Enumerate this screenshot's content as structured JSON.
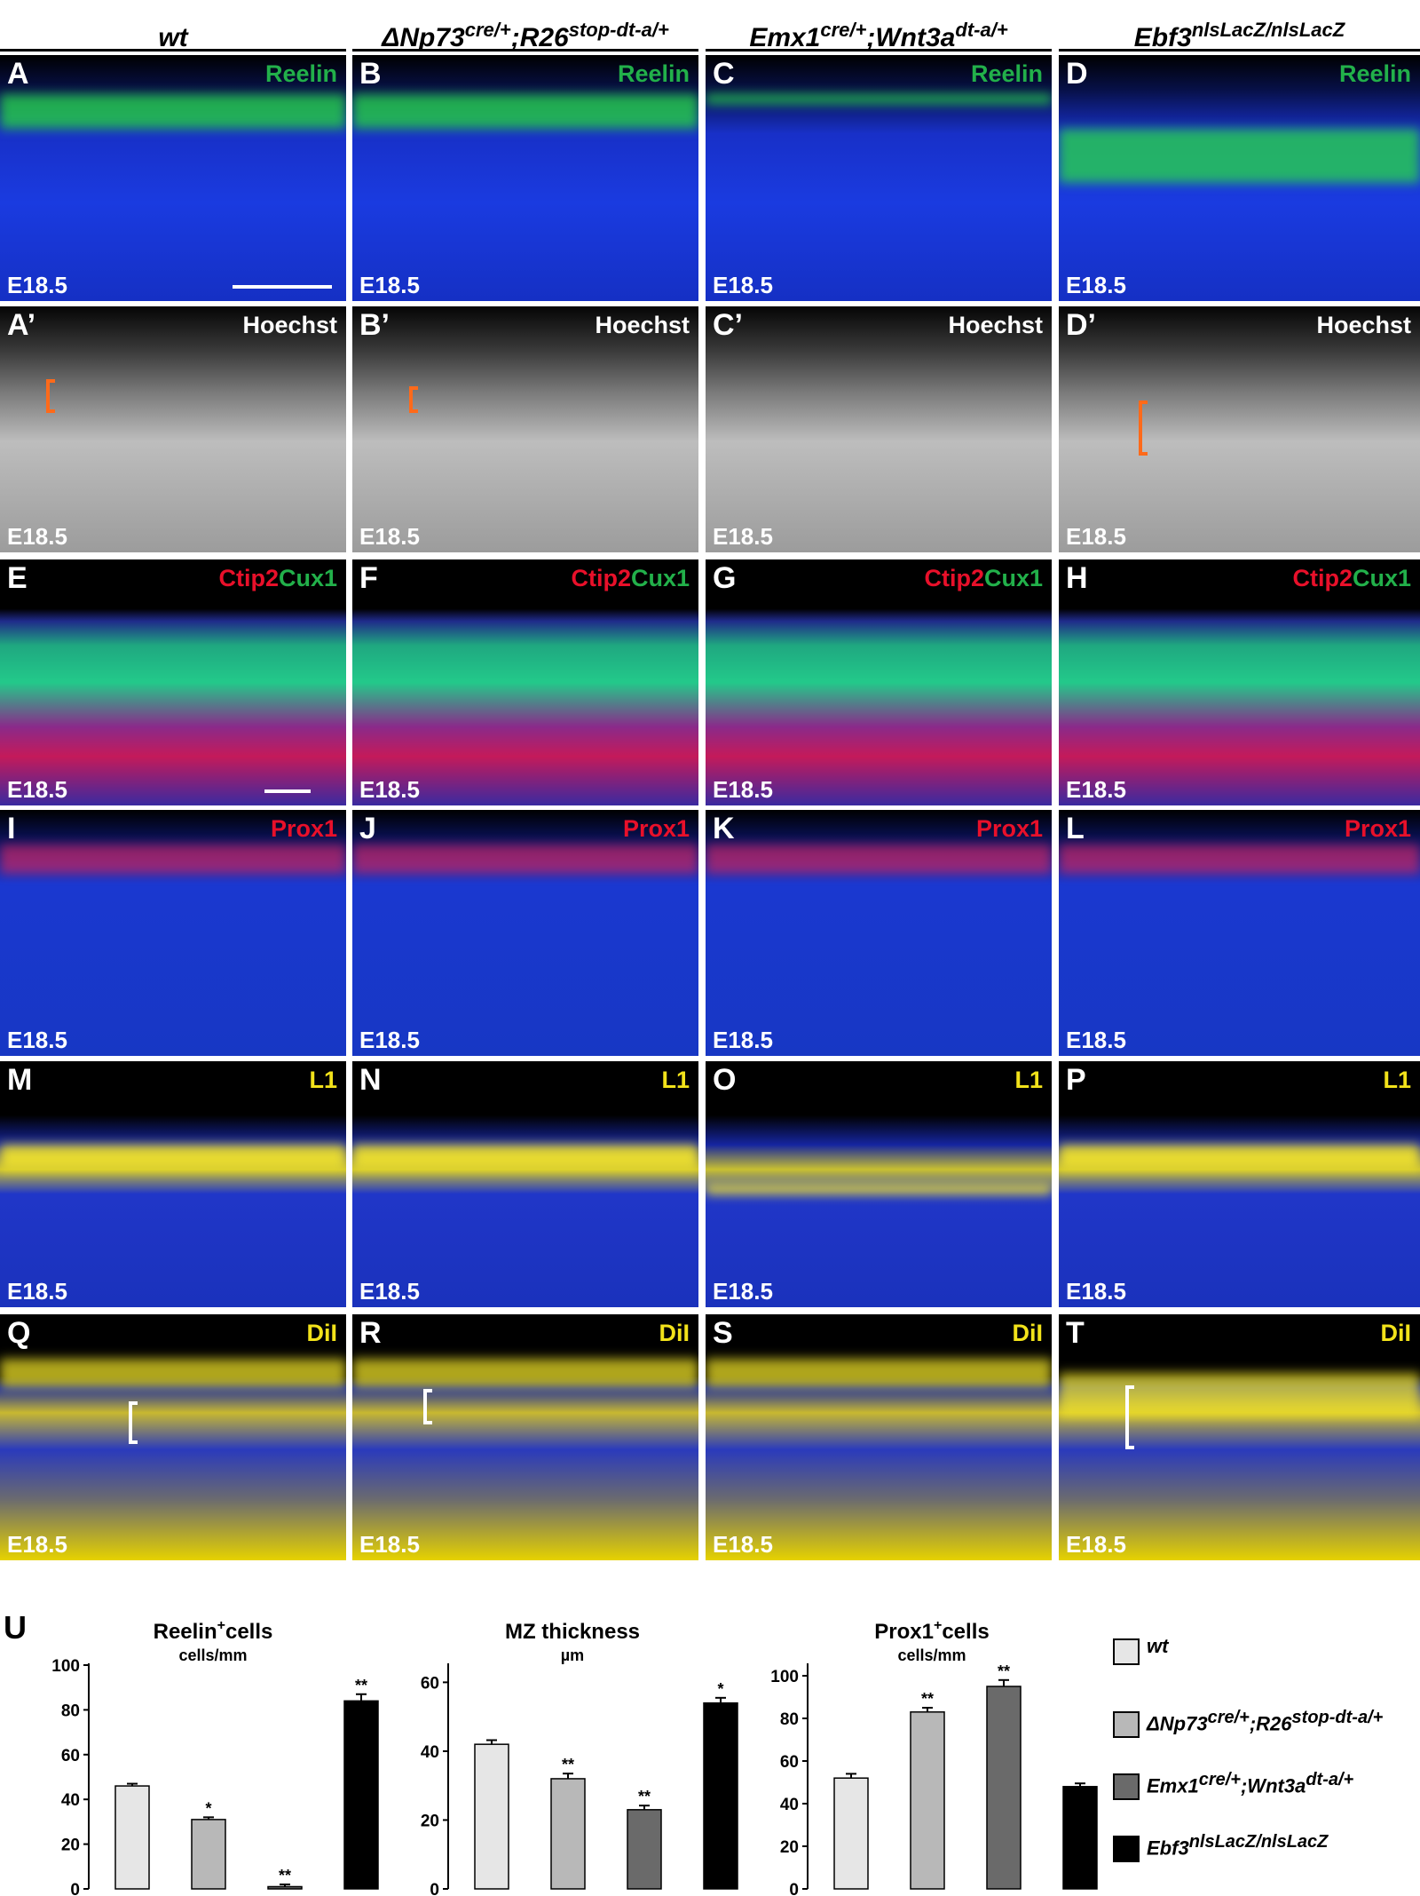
{
  "columns": [
    {
      "label": "wt",
      "sup": ""
    },
    {
      "label": "ΔNp73",
      "sup": "cre/+",
      "label2": ";R26",
      "sup2": "stop-dt-a/+"
    },
    {
      "label": "Emx1",
      "sup": "cre/+",
      "label2": ";Wnt3a",
      "sup2": "dt-a/+"
    },
    {
      "label": "Ebf3",
      "sup": "nlsLacZ/nlsLacZ"
    }
  ],
  "rows": [
    {
      "letters": [
        "A",
        "B",
        "C",
        "D"
      ],
      "stain": "Reelin",
      "stain_color": "#22b04a",
      "age": "E18.5"
    },
    {
      "letters": [
        "A’",
        "B’",
        "C’",
        "D’"
      ],
      "stain": "Hoechst",
      "stain_color": "#ffffff",
      "age": "E18.5"
    },
    {
      "letters": [
        "E",
        "F",
        "G",
        "H"
      ],
      "stain_a": "Ctip2",
      "stain_b": "Cux1",
      "stain_color_a": "#e8102a",
      "stain_color_b": "#22b04a",
      "age": "E18.5"
    },
    {
      "letters": [
        "I",
        "J",
        "K",
        "L"
      ],
      "stain": "Prox1",
      "stain_color": "#e8102a",
      "age": "E18.5"
    },
    {
      "letters": [
        "M",
        "N",
        "O",
        "P"
      ],
      "stain": "L1",
      "stain_color": "#f2e21a",
      "age": "E18.5"
    },
    {
      "letters": [
        "Q",
        "R",
        "S",
        "T"
      ],
      "stain": "DiI",
      "stain_color": "#f2e21a",
      "age": "E18.5"
    }
  ],
  "panel_u_label": "U",
  "chart_data": [
    {
      "type": "bar",
      "title": "Reelin",
      "title_sup": "+",
      "title_suffix": "cells",
      "unit": "cells/mm",
      "categories": [
        "wt",
        "ΔNp73cre/+;R26stop-dt-a/+",
        "Emx1cre/+;Wnt3adt-a/+",
        "Ebf3nlsLacZ/nlsLacZ"
      ],
      "values": [
        46,
        31,
        1,
        84
      ],
      "errors": [
        1,
        1,
        1,
        3
      ],
      "significance": [
        "",
        "*",
        "**",
        "**"
      ],
      "ylim": [
        0,
        100
      ],
      "yticks": [
        0,
        20,
        40,
        60,
        80,
        100
      ]
    },
    {
      "type": "bar",
      "title": "MZ thickness",
      "title_sup": "",
      "title_suffix": "",
      "unit": "µm",
      "categories": [
        "wt",
        "ΔNp73cre/+;R26stop-dt-a/+",
        "Emx1cre/+;Wnt3adt-a/+",
        "Ebf3nlsLacZ/nlsLacZ"
      ],
      "values": [
        42,
        32,
        23,
        54
      ],
      "errors": [
        1.2,
        1.5,
        1.2,
        1.5
      ],
      "significance": [
        "",
        "**",
        "**",
        "*"
      ],
      "ylim": [
        0,
        65
      ],
      "yticks": [
        0,
        20,
        40,
        60
      ]
    },
    {
      "type": "bar",
      "title": "Prox1",
      "title_sup": "+",
      "title_suffix": "cells",
      "unit": "cells/mm",
      "categories": [
        "wt",
        "ΔNp73cre/+;R26stop-dt-a/+",
        "Emx1cre/+;Wnt3adt-a/+",
        "Ebf3nlsLacZ/nlsLacZ"
      ],
      "values": [
        52,
        83,
        95,
        48
      ],
      "errors": [
        2,
        2,
        3,
        1.5
      ],
      "significance": [
        "",
        "**",
        "**",
        ""
      ],
      "ylim": [
        0,
        105
      ],
      "yticks": [
        0,
        20,
        40,
        60,
        80,
        100
      ]
    }
  ],
  "legend": [
    {
      "label": "wt",
      "sup": "",
      "label2": "",
      "sup2": "",
      "color": "#e6e6e6"
    },
    {
      "label": "ΔNp73",
      "sup": "cre/+",
      "label2": ";R26",
      "sup2": "stop-dt-a/+",
      "color": "#b8b8b8"
    },
    {
      "label": "Emx1",
      "sup": "cre/+",
      "label2": ";Wnt3a",
      "sup2": "dt-a/+",
      "color": "#6a6a6a"
    },
    {
      "label": "Ebf3",
      "sup": "nlsLacZ/nlsLacZ",
      "label2": "",
      "sup2": "",
      "color": "#000000"
    }
  ],
  "bar_colors": [
    "#e6e6e6",
    "#b8b8b8",
    "#6a6a6a",
    "#000000"
  ]
}
